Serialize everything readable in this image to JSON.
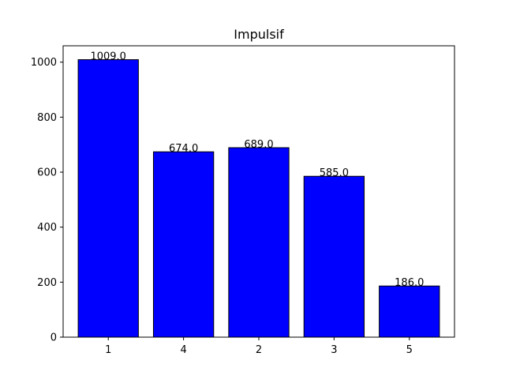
{
  "chart_data": {
    "type": "bar",
    "title": "Impulsif",
    "xlabel": "",
    "ylabel": "",
    "categories": [
      "1",
      "4",
      "2",
      "3",
      "5"
    ],
    "values": [
      1009.0,
      674.0,
      689.0,
      585.0,
      186.0
    ],
    "data_labels": [
      "1009.0",
      "674.0",
      "689.0",
      "585.0",
      "186.0"
    ],
    "ylim": [
      0,
      1059.45
    ],
    "yticks": [
      0,
      200,
      400,
      600,
      800,
      1000
    ],
    "grid": false,
    "legend": "none",
    "colors": {
      "bar_fill": "#0000ff",
      "bar_edge": "#000000",
      "axis": "#000000"
    }
  }
}
